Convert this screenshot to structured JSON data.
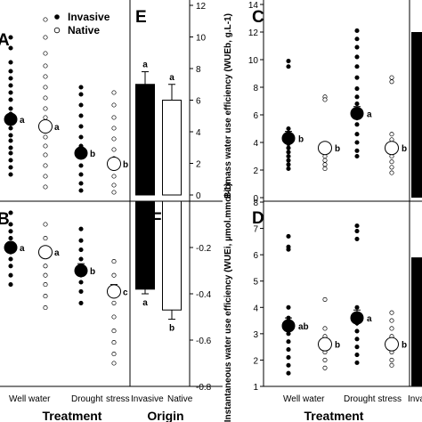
{
  "panels": {
    "A": {
      "letter": "A"
    },
    "B": {
      "letter": "B"
    },
    "C": {
      "letter": "C"
    },
    "D": {
      "letter": "D"
    },
    "E": {
      "letter": "E"
    },
    "F": {
      "letter": "F"
    }
  },
  "legend": {
    "invasive": "Invasive",
    "native": "Native"
  },
  "left_figure": {
    "x_axis_title": "Treatment",
    "x_tick_labels": [
      "Well water",
      "Drought",
      "stress"
    ]
  },
  "origin_figure": {
    "x_axis_title": "Origin",
    "x_tick_labels": [
      "Invasive",
      "Native"
    ]
  },
  "right_figure": {
    "x_axis_title": "Treatment",
    "x_tick_labels": [
      "Well water",
      "Drought stress",
      "Inva"
    ]
  },
  "chart_data": [
    {
      "id": "A",
      "type": "scatter",
      "categories": [
        "Well water",
        "Drought stress"
      ],
      "series": [
        {
          "name": "Invasive",
          "means": [
            4.4,
            2.5
          ],
          "se": [
            0.2,
            0.2
          ],
          "letters": [
            "a",
            "b"
          ],
          "points": [
            [
              9.0,
              8.4,
              7.6,
              7.1,
              6.7,
              6.3,
              5.9,
              5.5,
              5.0,
              4.7,
              4.2,
              3.9,
              3.5,
              3.2,
              2.8,
              2.5,
              2.1,
              1.7,
              1.3
            ],
            [
              6.2,
              5.8,
              5.2,
              4.6,
              4.0,
              3.4,
              2.9,
              2.3,
              1.8,
              1.3,
              0.8,
              0.4
            ]
          ]
        },
        {
          "name": "Native",
          "means": [
            4.0,
            1.9
          ],
          "se": [
            0.3,
            0.2
          ],
          "letters": [
            "a",
            "b"
          ],
          "points": [
            [
              10.0,
              9.0,
              8.1,
              7.4,
              6.8,
              6.2,
              5.6,
              5.0,
              4.5,
              4.0,
              3.4,
              2.9,
              2.4,
              1.8,
              1.2,
              0.6
            ],
            [
              5.9,
              5.2,
              4.5,
              3.9,
              3.3,
              2.7,
              2.2,
              1.7,
              1.2,
              0.7,
              0.3
            ]
          ]
        }
      ]
    },
    {
      "id": "B",
      "type": "scatter",
      "categories": [
        "Well water",
        "Drought stress"
      ],
      "series": [
        {
          "name": "Invasive",
          "means": [
            -0.2,
            -0.3
          ],
          "se": [
            0.02,
            0.03
          ],
          "letters": [
            "a",
            "b"
          ],
          "points": [
            [
              -0.05,
              -0.1,
              -0.13,
              -0.16,
              -0.19,
              -0.22,
              -0.25,
              -0.28,
              -0.32,
              -0.36
            ],
            [
              -0.12,
              -0.17,
              -0.21,
              -0.25,
              -0.28,
              -0.31,
              -0.35,
              -0.39,
              -0.44
            ]
          ]
        },
        {
          "name": "Native",
          "means": [
            -0.22,
            -0.39
          ],
          "se": [
            0.02,
            0.03
          ],
          "letters": [
            "a",
            "c"
          ],
          "points": [
            [
              -0.1,
              -0.16,
              -0.2,
              -0.24,
              -0.28,
              -0.32,
              -0.36,
              -0.41,
              -0.46
            ],
            [
              -0.26,
              -0.32,
              -0.38,
              -0.44,
              -0.5,
              -0.56,
              -0.61,
              -0.66,
              -0.7
            ]
          ]
        }
      ]
    },
    {
      "id": "E",
      "type": "bar",
      "categories": [
        "Invasive",
        "Native"
      ],
      "values": [
        7.0,
        6.0
      ],
      "errors": [
        0.8,
        1.0
      ],
      "letters": [
        "a",
        "a"
      ],
      "yticks": [
        0,
        2,
        4,
        6,
        8,
        10,
        12
      ],
      "ylim": [
        0,
        12
      ]
    },
    {
      "id": "F",
      "type": "bar",
      "categories": [
        "Invasive",
        "Native"
      ],
      "values": [
        -0.38,
        -0.47
      ],
      "errors": [
        0.02,
        0.04
      ],
      "letters": [
        "a",
        "b"
      ],
      "yticks": [
        -0.2,
        -0.4,
        -0.6,
        -0.8
      ],
      "ylim": [
        -0.8,
        0
      ]
    },
    {
      "id": "C",
      "type": "scatter",
      "ylabel": "Biomass water use efficiency (WUEb, g.L-1)",
      "yticks": [
        0,
        2,
        4,
        6,
        8,
        10,
        12,
        14
      ],
      "ylim": [
        0,
        14
      ],
      "categories": [
        "Well water",
        "Drought stress"
      ],
      "series": [
        {
          "name": "Invasive",
          "means": [
            4.3,
            6.1
          ],
          "se": [
            0.5,
            0.5
          ],
          "letters": [
            "b",
            "a"
          ],
          "points": [
            [
              9.9,
              9.5,
              5.0,
              4.7,
              4.4,
              4.1,
              3.9,
              3.6,
              3.3,
              3.0,
              2.7,
              2.4,
              2.1
            ],
            [
              12.1,
              11.5,
              10.9,
              10.2,
              9.5,
              8.7,
              7.9,
              7.3,
              6.8,
              6.3,
              5.8,
              5.3,
              4.6,
              4.0,
              3.4,
              3.0
            ]
          ]
        },
        {
          "name": "Native",
          "means": [
            3.6,
            3.6
          ],
          "se": [
            0.3,
            0.4
          ],
          "letters": [
            "b",
            "b"
          ],
          "points": [
            [
              7.3,
              7.1,
              3.9,
              3.6,
              3.3,
              3.0,
              2.7,
              2.4,
              2.1
            ],
            [
              8.7,
              8.4,
              4.6,
              4.2,
              3.8,
              3.4,
              3.0,
              2.6,
              2.2,
              1.8
            ]
          ]
        }
      ]
    },
    {
      "id": "D",
      "type": "scatter",
      "ylabel": "Instantaneous water use efficiency (WUEi, µmol.mmol-1)",
      "yticks": [
        1,
        2,
        3,
        4,
        5,
        6,
        7,
        8
      ],
      "ylim": [
        1,
        8
      ],
      "categories": [
        "Well water",
        "Drought stress"
      ],
      "series": [
        {
          "name": "Invasive",
          "means": [
            3.3,
            3.6
          ],
          "se": [
            0.3,
            0.3
          ],
          "letters": [
            "ab",
            "a"
          ],
          "points": [
            [
              6.7,
              6.3,
              6.2,
              4.0,
              3.6,
              3.3,
              3.0,
              2.7,
              2.4,
              2.1,
              1.8,
              1.5
            ],
            [
              7.1,
              6.9,
              6.6,
              4.0,
              3.7,
              3.4,
              3.1,
              2.8,
              2.5,
              2.2,
              1.9
            ]
          ]
        },
        {
          "name": "Native",
          "means": [
            2.6,
            2.6
          ],
          "se": [
            0.2,
            0.2
          ],
          "letters": [
            "b",
            "b"
          ],
          "points": [
            [
              4.3,
              3.2,
              2.9,
              2.6,
              2.3,
              2.0,
              1.7
            ],
            [
              3.8,
              3.5,
              3.2,
              2.9,
              2.6,
              2.3,
              2.0,
              1.8
            ]
          ]
        }
      ]
    },
    {
      "id": "G",
      "type": "bar",
      "categories": [
        "Invasive"
      ],
      "values": [
        12.0
      ],
      "ylim": [
        0,
        14
      ]
    },
    {
      "id": "H",
      "type": "bar",
      "categories": [
        "Invasive"
      ],
      "values": [
        5.9
      ],
      "ylim": [
        1,
        8
      ]
    }
  ]
}
